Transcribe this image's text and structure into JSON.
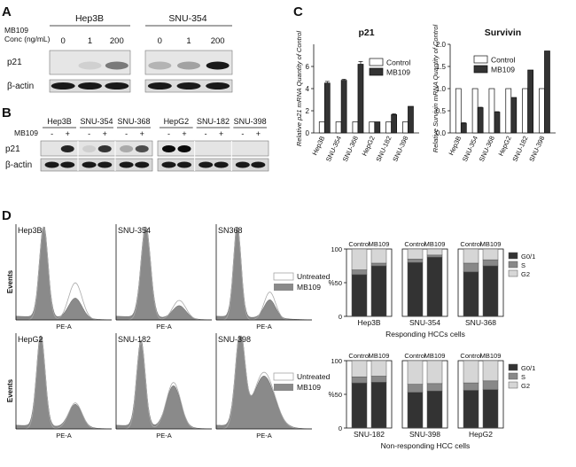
{
  "panels": {
    "A": {
      "letter": "A",
      "treatment_label": "MB109",
      "conc_label": "Conc (ng/mL)",
      "cell_lines": [
        "Hep3B",
        "SNU-354"
      ],
      "concentrations": [
        "0",
        "1",
        "200"
      ],
      "rows": [
        "p21",
        "β-actin"
      ],
      "p21_intensity": [
        [
          0.0,
          0.05,
          0.55
        ],
        [
          0.25,
          0.35,
          0.95
        ]
      ]
    },
    "B": {
      "letter": "B",
      "treatment_label": "MB109",
      "signs": [
        "-",
        "+"
      ],
      "rows": [
        "p21",
        "β-actin"
      ],
      "groups": [
        {
          "lines": [
            "Hep3B",
            "SNU-354",
            "SNU-368"
          ],
          "p21": [
            [
              0.0,
              0.9
            ],
            [
              0.05,
              0.85
            ],
            [
              0.3,
              0.75
            ]
          ]
        },
        {
          "lines": [
            "HepG2",
            "SNU-182",
            "SNU-398"
          ],
          "p21": [
            [
              1.0,
              1.0
            ],
            [
              0.0,
              0.0
            ],
            [
              0.0,
              0.0
            ]
          ]
        }
      ]
    },
    "C": {
      "letter": "C"
    },
    "D": {
      "letter": "D",
      "events_label": "Events",
      "pea_label": "PE-A",
      "legend": [
        "Untreated",
        "MB109"
      ],
      "histograms_top": [
        "Hep3B",
        "SNU-354",
        "SN368"
      ],
      "histograms_bottom": [
        "HepG2",
        "SNU-182",
        "SNU-398"
      ],
      "bar_legend": [
        "G0/1",
        "S",
        "G2"
      ],
      "bar_colors": [
        "#333333",
        "#888888",
        "#d6d6d6"
      ],
      "pct_label": "%",
      "top_caption": "Responding HCCs cells",
      "bottom_caption": "Non-responding HCC cells"
    }
  },
  "chart_data": [
    {
      "type": "bar",
      "title": "p21",
      "ylabel": "Relative p21 mRNA Quantity of Control",
      "categories": [
        "Hep3B",
        "SNU-354",
        "SNU-368",
        "HepG2",
        "SNU-182",
        "SNU-398"
      ],
      "ylim": [
        0,
        8
      ],
      "yticks": [
        0,
        2,
        4,
        6
      ],
      "series": [
        {
          "name": "Control",
          "color": "#ffffff",
          "values": [
            1,
            1,
            1,
            1,
            1,
            1
          ]
        },
        {
          "name": "MB109",
          "color": "#333333",
          "values": [
            4.5,
            4.75,
            6.2,
            1.0,
            1.65,
            2.4
          ],
          "errors": [
            0.15,
            0.1,
            0.25,
            0,
            0.08,
            0
          ]
        }
      ]
    },
    {
      "type": "bar",
      "title": "Survivin",
      "ylabel": "Relative Survivin mRNA Quantity of Control",
      "categories": [
        "Hep3B",
        "SNU-354",
        "SNU-368",
        "HepG2",
        "SNU-182",
        "SNU-398"
      ],
      "ylim": [
        0,
        2.0
      ],
      "yticks": [
        0.0,
        0.5,
        1.0,
        1.5,
        2.0
      ],
      "series": [
        {
          "name": "Control",
          "color": "#ffffff",
          "values": [
            1,
            1,
            1,
            1,
            1,
            1
          ]
        },
        {
          "name": "MB109",
          "color": "#333333",
          "values": [
            0.22,
            0.57,
            0.47,
            0.8,
            1.42,
            1.85
          ],
          "errors": [
            0.01,
            0.01,
            0.01,
            0,
            0,
            0
          ]
        }
      ]
    },
    {
      "type": "bar",
      "stacked": true,
      "caption": "Responding HCCs cells",
      "ylabel": "%",
      "ylim": [
        0,
        100
      ],
      "yticks": [
        0,
        50,
        100
      ],
      "panels": [
        "Hep3B",
        "SNU-354",
        "SNU-368"
      ],
      "conditions": [
        "Control",
        "MB109"
      ],
      "series": [
        {
          "name": "G0/1",
          "values": [
            [
              62,
              75
            ],
            [
              80,
              88
            ],
            [
              66,
              75
            ]
          ]
        },
        {
          "name": "S",
          "values": [
            [
              7,
              4
            ],
            [
              5,
              3
            ],
            [
              13,
              9
            ]
          ]
        },
        {
          "name": "G2",
          "values": [
            [
              31,
              21
            ],
            [
              15,
              9
            ],
            [
              21,
              16
            ]
          ]
        }
      ]
    },
    {
      "type": "bar",
      "stacked": true,
      "caption": "Non-responding HCC cells",
      "ylabel": "%",
      "ylim": [
        0,
        100
      ],
      "yticks": [
        0,
        50,
        100
      ],
      "panels": [
        "SNU-182",
        "SNU-398",
        "HepG2"
      ],
      "conditions": [
        "Control",
        "MB109"
      ],
      "series": [
        {
          "name": "G0/1",
          "values": [
            [
              67,
              68
            ],
            [
              53,
              55
            ],
            [
              56,
              57
            ]
          ]
        },
        {
          "name": "S",
          "values": [
            [
              9,
              9
            ],
            [
              12,
              11
            ],
            [
              11,
              13
            ]
          ]
        },
        {
          "name": "G2",
          "values": [
            [
              24,
              23
            ],
            [
              35,
              34
            ],
            [
              33,
              30
            ]
          ]
        }
      ]
    }
  ]
}
